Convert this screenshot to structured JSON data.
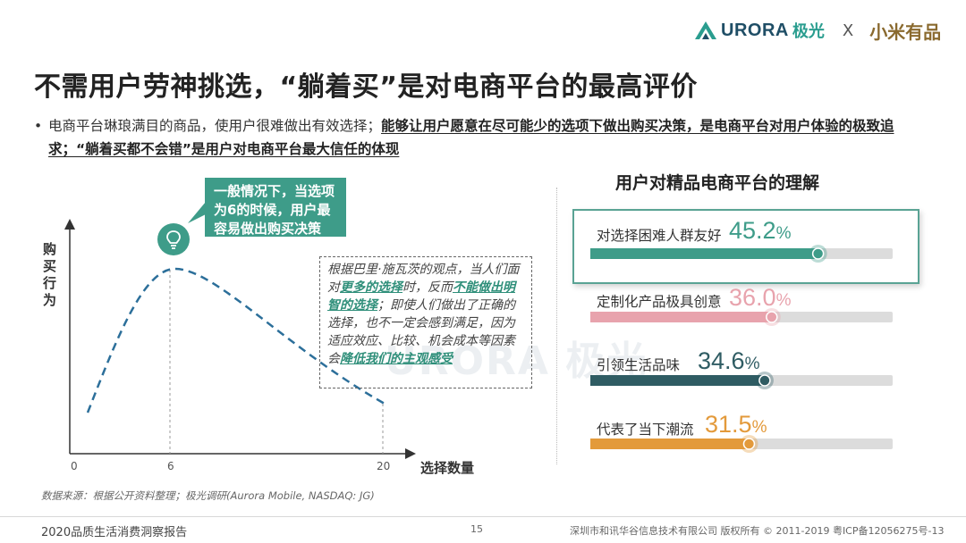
{
  "header": {
    "logo_text": "URORA",
    "logo_cn": "极光",
    "separator": "X",
    "partner": "小米有品"
  },
  "title": "不需用户劳神挑选，“躺着买”是对电商平台的最高评价",
  "bullet": {
    "part1": "电商平台琳琅满目的商品，使用户很难做出有效选择；",
    "part2": "能够让用户愿意在尽可能少的选项下做出购买决策，是电商平台对用户体验的极致追求；“躺着买都不会错”是用户对电商平台最大信任的体现"
  },
  "callout": {
    "text": "一般情况下，当选项为6的时候，用户最容易做出购买决策"
  },
  "note": {
    "p1": "根据巴里·施瓦茨的观点，当人们面对",
    "g1": "更多的选择",
    "p2": "时，反而",
    "g2": "不能做出明智的选择",
    "p3": "；即使人们做出了正确的选择，也不一定会感到满足，因为适应效应、比较、机会成本等因素会",
    "g3": "降低我们的主观感受"
  },
  "watermark": "URORA 极光",
  "colors": {
    "teal": "#3e9c89",
    "pink": "#e8a3ad",
    "dark_teal": "#2f5c63",
    "orange": "#e39a3b",
    "track": "#dcdcdc",
    "curve": "#2c6f9a"
  },
  "chart_data": [
    {
      "type": "line",
      "xlabel": "选择数量",
      "ylabel": "购买行为",
      "x_ticks": [
        "0",
        "6",
        "20"
      ],
      "peak_x": 6,
      "xlim": [
        0,
        20
      ],
      "note": "conceptual curve rising to a peak at 6 options then declining"
    },
    {
      "type": "bar",
      "title": "用户对精品电商平台的理解",
      "categories": [
        "对选择困难人群友好",
        "定制化产品极具创意",
        "引领生活品味",
        "代表了当下潮流"
      ],
      "values": [
        45.2,
        36.0,
        34.6,
        31.5
      ],
      "value_labels": [
        "45.2",
        "36.0",
        "34.6",
        "31.5"
      ],
      "unit": "%",
      "xlim": [
        0,
        60
      ]
    }
  ],
  "source": "数据来源：根据公开资料整理；极光调研(Aurora Mobile, NASDAQ: JG)",
  "footer": {
    "report": "2020品质生活消费洞察报告",
    "page": "15",
    "copyright": "深圳市和讯华谷信息技术有限公司 版权所有 © 2011-2019 粤ICP备12056275号-13"
  }
}
